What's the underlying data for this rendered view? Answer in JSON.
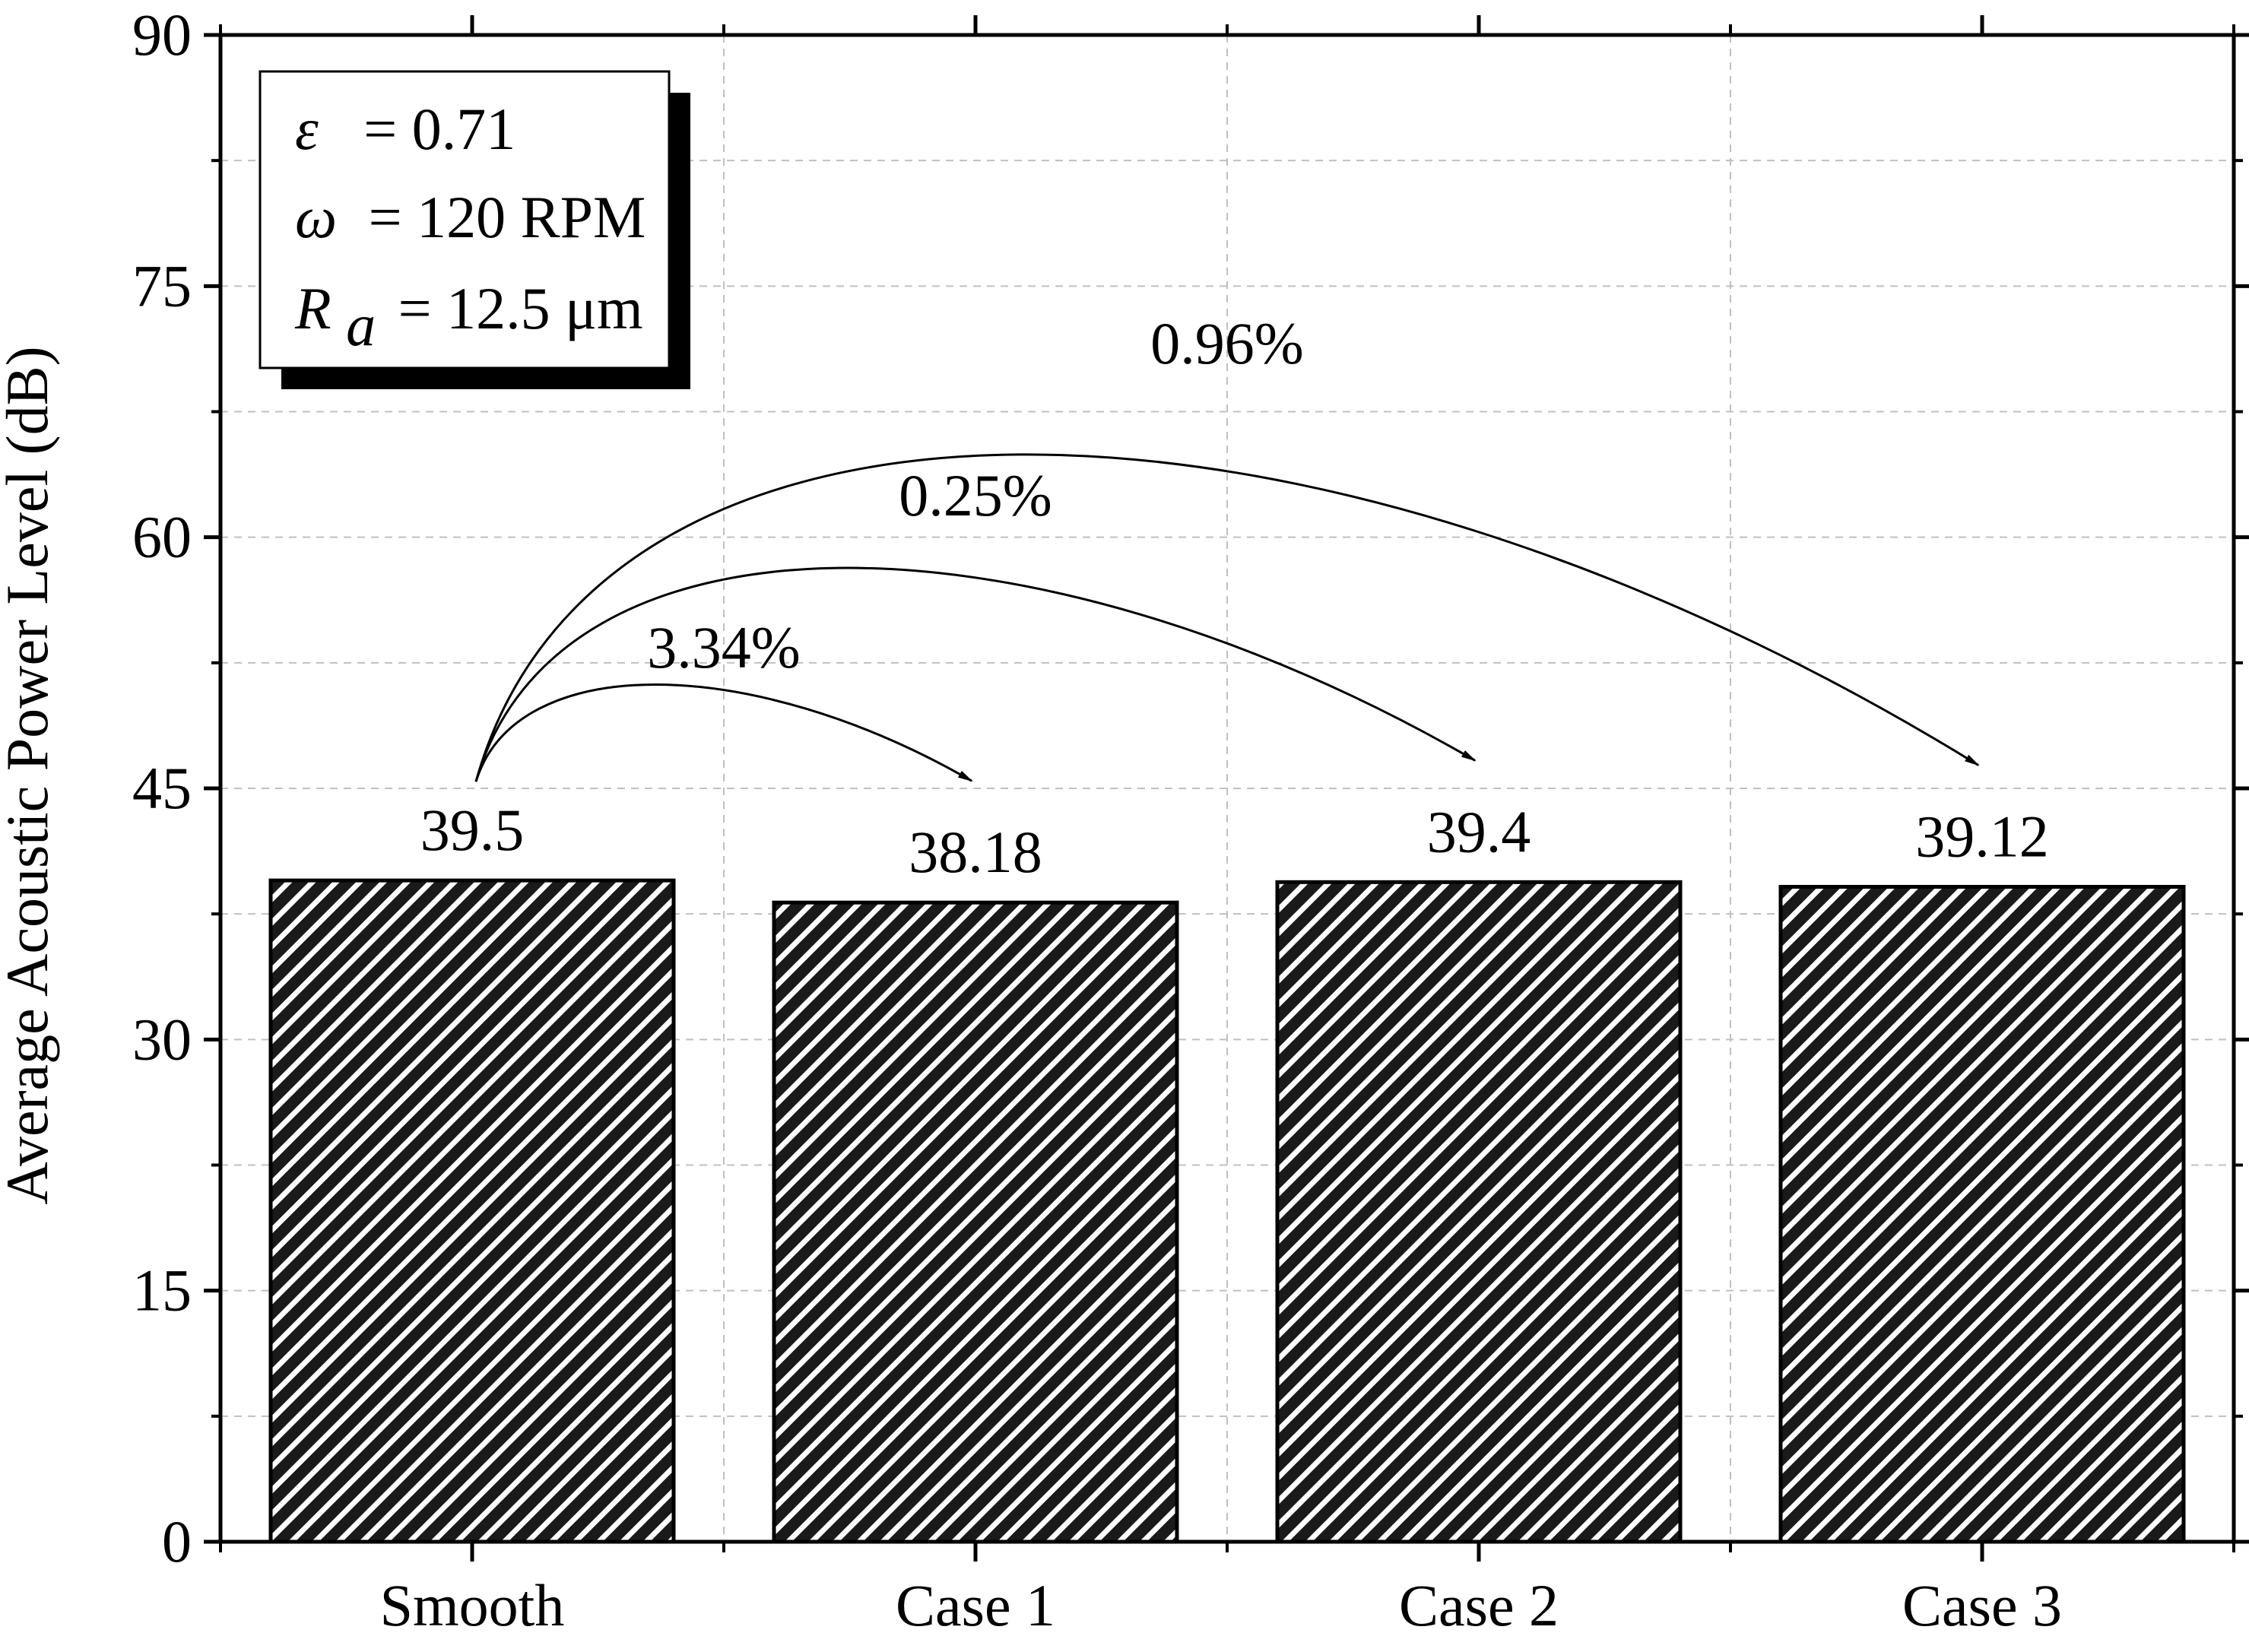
{
  "chart_data": {
    "type": "bar",
    "title": "",
    "xlabel": "",
    "ylabel": "Average Acoustic Power Level (dB)",
    "ylim": [
      0,
      90
    ],
    "yticks": [
      0,
      15,
      30,
      45,
      60,
      75,
      90
    ],
    "grid": true,
    "categories": [
      "Smooth",
      "Case 1",
      "Case 2",
      "Case 3"
    ],
    "values": [
      39.5,
      38.18,
      39.4,
      39.12
    ],
    "value_labels": [
      "39.5",
      "38.18",
      "39.4",
      "39.12"
    ],
    "bar_fill": "diagonal hatch",
    "annotations": [
      {
        "label": "3.34%",
        "from": "Smooth",
        "to": "Case 1"
      },
      {
        "label": "0.25%",
        "from": "Smooth",
        "to": "Case 2"
      },
      {
        "label": "0.96%",
        "from": "Smooth",
        "to": "Case 3"
      }
    ],
    "legend": {
      "placement": "top-left",
      "lines": [
        {
          "symbol": "ε",
          "sub": "",
          "text": "= 0.71"
        },
        {
          "symbol": "ω",
          "sub": "",
          "text": "= 120 RPM"
        },
        {
          "symbol": "R",
          "sub": "a",
          "text": "= 12.5 μm"
        }
      ]
    }
  },
  "colors": {
    "axis": "#000000",
    "bar_fill": "#1a1a1a",
    "hatch": "#ffffff",
    "grid": "#c0c0c0"
  }
}
